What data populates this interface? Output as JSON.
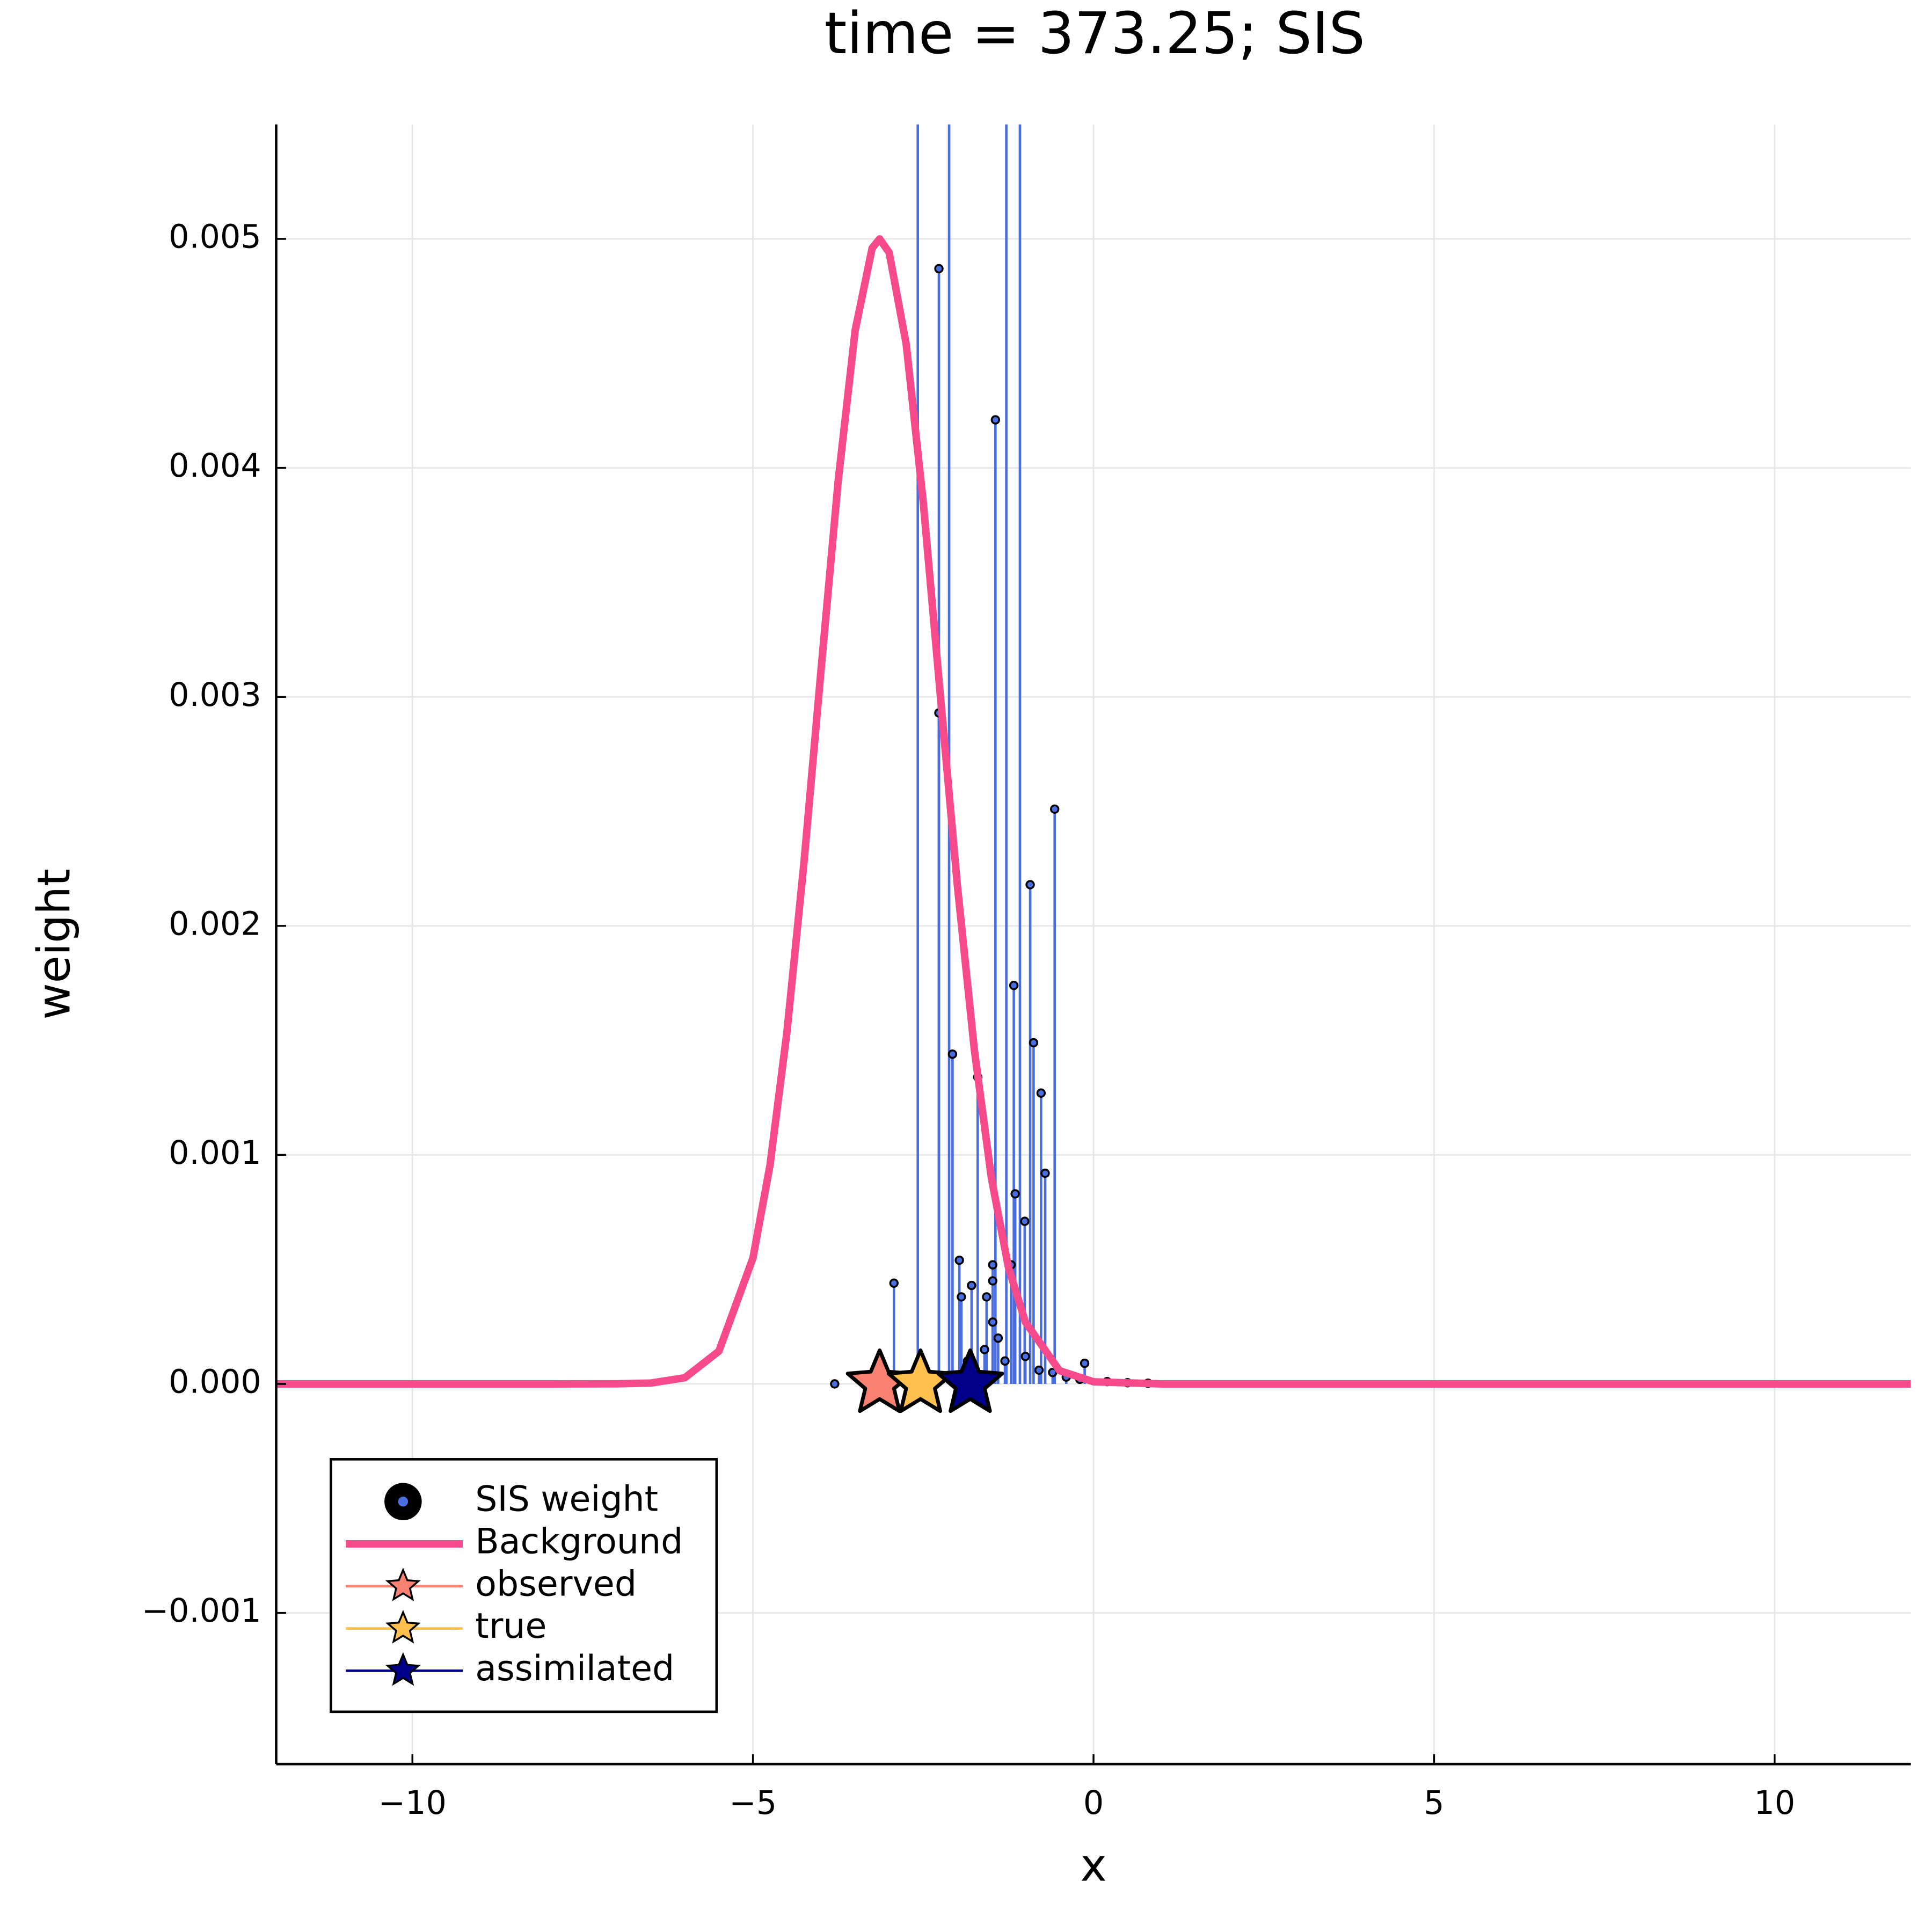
{
  "chart_data": {
    "type": "stem",
    "title": "time = 373.25; SIS",
    "x_label": "x",
    "y_label": "weight",
    "xlim": [
      -12,
      12
    ],
    "ylim": [
      -0.00166,
      0.0055
    ],
    "xticks": [
      {
        "value": -10,
        "label": "−10"
      },
      {
        "value": -5,
        "label": "−5"
      },
      0,
      5,
      10
    ],
    "yticks": [
      {
        "value": -0.001,
        "label": "−0.001"
      },
      {
        "value": 0,
        "label": "0.000"
      },
      0.001,
      0.002,
      0.003,
      0.004,
      0.005
    ],
    "grid": true,
    "legend": "bottom-left",
    "series": [
      {
        "name": "SIS weight",
        "type": "stem",
        "color": "#4a6ee0",
        "x": [
          -3.8,
          -2.93,
          -2.58,
          -2.27,
          -2.27,
          -2.12,
          -2.07,
          -1.97,
          -1.94,
          -1.85,
          -1.79,
          -1.7,
          -1.6,
          -1.57,
          -1.48,
          -1.48,
          -1.48,
          -1.44,
          -1.4,
          -1.3,
          -1.28,
          -1.21,
          -1.17,
          -1.15,
          -1.08,
          -1.01,
          -1.0,
          -0.93,
          -0.88,
          -0.8,
          -0.77,
          -0.71,
          -0.6,
          -0.57,
          -0.4,
          -0.2,
          -0.13,
          0.2,
          0.5,
          0.8
        ],
        "values": [
          0,
          0.00044,
          0.0065,
          0.00487,
          0.00293,
          0.0075,
          0.00144,
          0.00054,
          0.00038,
          0.0001,
          0.00043,
          0.00134,
          0.00015,
          0.00038,
          0.00052,
          0.00045,
          0.00027,
          0.00421,
          0.0002,
          0.0001,
          0.012,
          0.00052,
          0.00174,
          0.00083,
          0.01,
          0.00071,
          0.00012,
          0.00218,
          0.00149,
          6e-05,
          0.00127,
          0.00092,
          5e-05,
          0.00251,
          3e-05,
          2e-05,
          9e-05,
          1e-05,
          5e-06,
          3e-06
        ]
      },
      {
        "name": "Background",
        "type": "line",
        "color": "#f64a8a",
        "x": [
          -12,
          -8,
          -7,
          -6.5,
          -6,
          -5.5,
          -5,
          -4.75,
          -4.5,
          -4.25,
          -4,
          -3.75,
          -3.5,
          -3.25,
          -3.14,
          -3,
          -2.75,
          -2.5,
          -2.25,
          -2,
          -1.75,
          -1.5,
          -1.25,
          -1,
          -0.5,
          0,
          1,
          12
        ],
        "values": [
          0,
          0,
          3.7e-07,
          3.7e-06,
          2.7e-05,
          0.000143,
          0.00055,
          0.000955,
          0.00154,
          0.00228,
          0.00312,
          0.00394,
          0.0046,
          0.00496,
          0.005,
          0.00494,
          0.00454,
          0.00385,
          0.00301,
          0.00218,
          0.00146,
          0.0009,
          0.00051,
          0.00027,
          5.8e-05,
          9.3e-06,
          0,
          0
        ]
      },
      {
        "name": "observed",
        "type": "star",
        "color": "#fa8072",
        "x": [
          -3.14
        ],
        "values": [
          0
        ]
      },
      {
        "name": "true",
        "type": "star",
        "color": "#ffc04d",
        "x": [
          -2.54
        ],
        "values": [
          0
        ]
      },
      {
        "name": "assimilated",
        "type": "star",
        "color": "#00008b",
        "x": [
          -1.81
        ],
        "values": [
          0
        ]
      }
    ]
  }
}
